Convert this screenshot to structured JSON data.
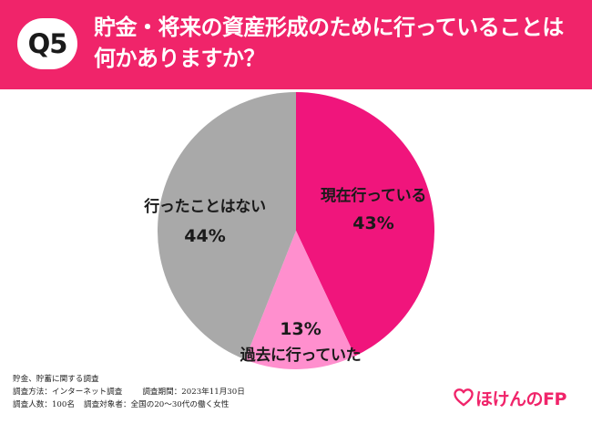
{
  "header": {
    "badge": "Q5",
    "question_line1": "貯金・将来の資産形成のために行っていることは",
    "question_line2": "何かありますか？"
  },
  "chart_data": {
    "type": "pie",
    "categories": [
      "現在行っている",
      "過去に行っていた",
      "行ったことはない"
    ],
    "values": [
      43,
      13,
      44
    ],
    "value_labels": [
      "43%",
      "13%",
      "44%"
    ],
    "colors": [
      "#f0157c",
      "#ff8fce",
      "#a9a9a9"
    ],
    "title": "",
    "start": "12 o'clock, clockwise"
  },
  "footnote": {
    "line1": "貯金、貯蓄に関する調査",
    "method_label": "調査方法：インターネット調査",
    "period_label": "調査期間：2023年11月30日",
    "respondents_label": "調査人数：100名",
    "target_label": "調査対象者：全国の20～30代の働く女性"
  },
  "logo": {
    "text": "ほけんのFP",
    "icon": "heart-icon",
    "color": "#f0246a"
  }
}
